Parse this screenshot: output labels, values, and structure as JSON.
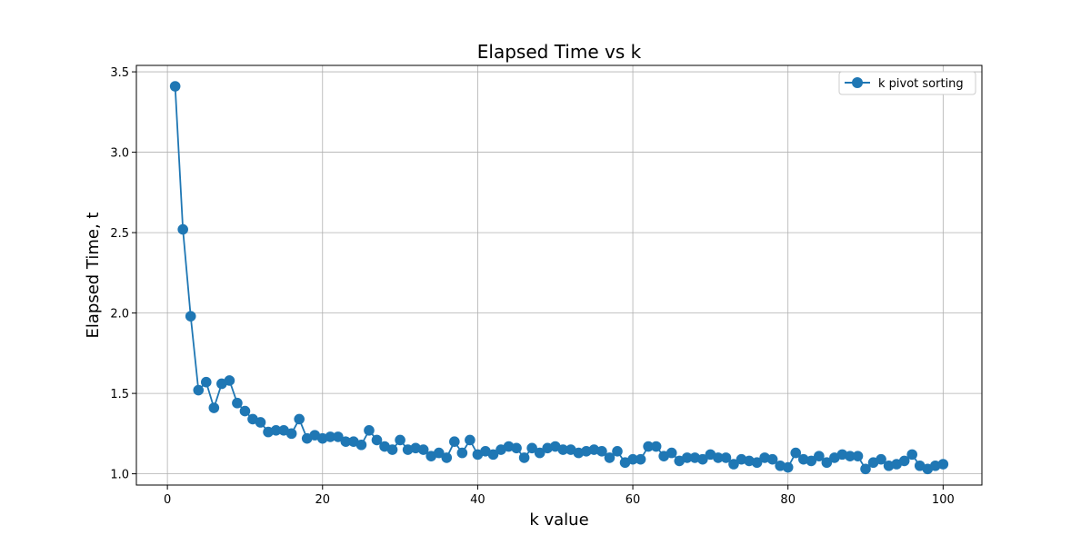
{
  "chart_data": {
    "type": "line",
    "title": "Elapsed Time vs k",
    "xlabel": "k value",
    "ylabel": "Elapsed Time, t",
    "xlim": [
      -4,
      105
    ],
    "ylim": [
      0.93,
      3.54
    ],
    "xticks": [
      0,
      20,
      40,
      60,
      80,
      100
    ],
    "yticks": [
      1.0,
      1.5,
      2.0,
      2.5,
      3.0,
      3.5
    ],
    "xtick_labels": [
      "0",
      "20",
      "40",
      "60",
      "80",
      "100"
    ],
    "ytick_labels": [
      "1.0",
      "1.5",
      "2.0",
      "2.5",
      "3.0",
      "3.5"
    ],
    "grid": true,
    "legend_position": "upper right",
    "series": [
      {
        "name": "k pivot sorting",
        "color": "#1f77b4",
        "marker": "circle",
        "x": [
          1,
          2,
          3,
          4,
          5,
          6,
          7,
          8,
          9,
          10,
          11,
          12,
          13,
          14,
          15,
          16,
          17,
          18,
          19,
          20,
          21,
          22,
          23,
          24,
          25,
          26,
          27,
          28,
          29,
          30,
          31,
          32,
          33,
          34,
          35,
          36,
          37,
          38,
          39,
          40,
          41,
          42,
          43,
          44,
          45,
          46,
          47,
          48,
          49,
          50,
          51,
          52,
          53,
          54,
          55,
          56,
          57,
          58,
          59,
          60,
          61,
          62,
          63,
          64,
          65,
          66,
          67,
          68,
          69,
          70,
          71,
          72,
          73,
          74,
          75,
          76,
          77,
          78,
          79,
          80,
          81,
          82,
          83,
          84,
          85,
          86,
          87,
          88,
          89,
          90,
          91,
          92,
          93,
          94,
          95,
          96,
          97,
          98,
          99,
          100
        ],
        "y": [
          3.41,
          2.52,
          1.98,
          1.52,
          1.57,
          1.41,
          1.56,
          1.58,
          1.44,
          1.39,
          1.34,
          1.32,
          1.26,
          1.27,
          1.27,
          1.25,
          1.34,
          1.22,
          1.24,
          1.22,
          1.23,
          1.23,
          1.2,
          1.2,
          1.18,
          1.27,
          1.21,
          1.17,
          1.15,
          1.21,
          1.15,
          1.16,
          1.15,
          1.11,
          1.13,
          1.1,
          1.2,
          1.13,
          1.21,
          1.12,
          1.14,
          1.12,
          1.15,
          1.17,
          1.16,
          1.1,
          1.16,
          1.13,
          1.16,
          1.17,
          1.15,
          1.15,
          1.13,
          1.14,
          1.15,
          1.14,
          1.1,
          1.14,
          1.07,
          1.09,
          1.09,
          1.17,
          1.17,
          1.11,
          1.13,
          1.08,
          1.1,
          1.1,
          1.09,
          1.12,
          1.1,
          1.1,
          1.06,
          1.09,
          1.08,
          1.07,
          1.1,
          1.09,
          1.05,
          1.04,
          1.13,
          1.09,
          1.08,
          1.11,
          1.07,
          1.1,
          1.12,
          1.11,
          1.11,
          1.03,
          1.07,
          1.09,
          1.05,
          1.06,
          1.08,
          1.12,
          1.05,
          1.03,
          1.05,
          1.06
        ]
      }
    ]
  }
}
